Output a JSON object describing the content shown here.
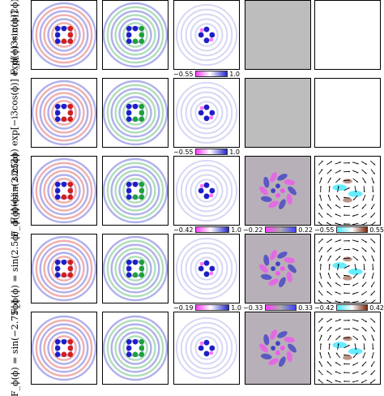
{
  "rows": [
    {
      "label": "F_ϕ(ϕ) = cos(2ϕ)",
      "colorbars": [
        {
          "min": "−0.55",
          "max": "1.0"
        }
      ]
    },
    {
      "label": "F_ϕ(ϕ) = sin(2ϕ) exp[−i3cos(ϕ)] exp[−i3sin(ϕ)]",
      "colorbars": [
        {
          "min": "−0.55",
          "max": "1.0"
        }
      ]
    },
    {
      "label": "F_ϕ(ϕ)=sin(2.25ϕ)",
      "colorbars": [
        {
          "min": "−0.42",
          "max": "1.0"
        },
        {
          "min": "−0.22",
          "max": "0.22"
        },
        {
          "min": "−0.55",
          "max": "0.55"
        }
      ]
    },
    {
      "label": "F_ϕ(ϕ) = sin(2.5ϕ)",
      "colorbars": [
        {
          "min": "−0.19",
          "max": "1.0"
        },
        {
          "min": "−0.33",
          "max": "0.33"
        },
        {
          "min": "−0.42",
          "max": "0.42"
        }
      ]
    },
    {
      "label": "F_ϕ(ϕ) = sin(−2.75ϕ)",
      "colorbars": []
    }
  ],
  "colors": {
    "red": "#d21e1e",
    "green": "#1ea03c",
    "blue": "#1e1ec8",
    "magenta": "#ff3cff",
    "cyan": "#40e8ff",
    "brown": "#7a2a10",
    "gray": "#bdbdbd"
  }
}
